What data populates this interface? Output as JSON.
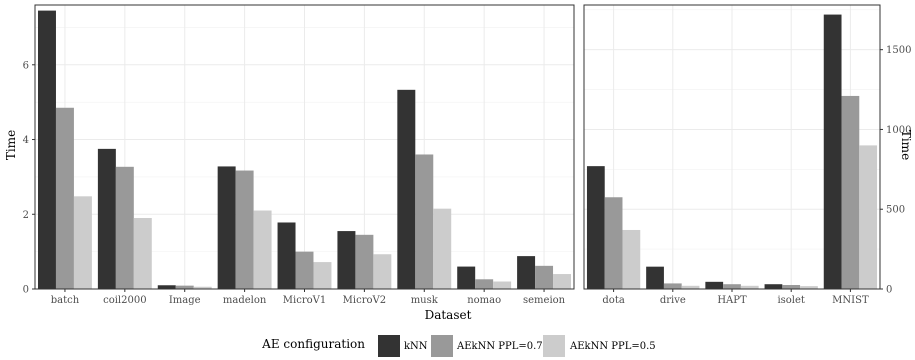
{
  "chart_data": {
    "type": "bar",
    "xlabel": "Dataset",
    "ylabel": "Time",
    "legend": {
      "title": "AE configuration",
      "position": "bottom",
      "entries": [
        {
          "name": "kNN",
          "color": "#333333"
        },
        {
          "name": "AEkNN PPL=0.75",
          "color": "#999999"
        },
        {
          "name": "AEkNN PPL=0.5",
          "color": "#cccccc"
        }
      ]
    },
    "panels": [
      {
        "id": "left",
        "y_axis_side": "left",
        "ylim": [
          0,
          7.6
        ],
        "yticks": [
          0,
          2,
          4,
          6
        ],
        "categories": [
          "batch",
          "coil2000",
          "Image",
          "madelon",
          "MicroV1",
          "MicroV2",
          "musk",
          "nomao",
          "semeion"
        ],
        "series": [
          {
            "name": "kNN",
            "values": [
              7.45,
              3.75,
              0.1,
              3.28,
              1.78,
              1.55,
              5.33,
              0.6,
              0.88
            ]
          },
          {
            "name": "AEkNN PPL=0.75",
            "values": [
              4.85,
              3.27,
              0.09,
              3.17,
              1.0,
              1.45,
              3.6,
              0.26,
              0.62
            ]
          },
          {
            "name": "AEkNN PPL=0.5",
            "values": [
              2.48,
              1.9,
              0.06,
              2.1,
              0.72,
              0.93,
              2.15,
              0.2,
              0.4
            ]
          }
        ]
      },
      {
        "id": "right",
        "y_axis_side": "right",
        "ylim": [
          0,
          1780
        ],
        "yticks": [
          0,
          500,
          1000,
          1500
        ],
        "categories": [
          "dota",
          "drive",
          "HAPT",
          "isolet",
          "MNIST"
        ],
        "series": [
          {
            "name": "kNN",
            "values": [
              770,
              140,
              45,
              30,
              1720
            ]
          },
          {
            "name": "AEkNN PPL=0.75",
            "values": [
              575,
              35,
              30,
              25,
              1210
            ]
          },
          {
            "name": "AEkNN PPL=0.5",
            "values": [
              370,
              20,
              20,
              18,
              900
            ]
          }
        ]
      }
    ]
  }
}
